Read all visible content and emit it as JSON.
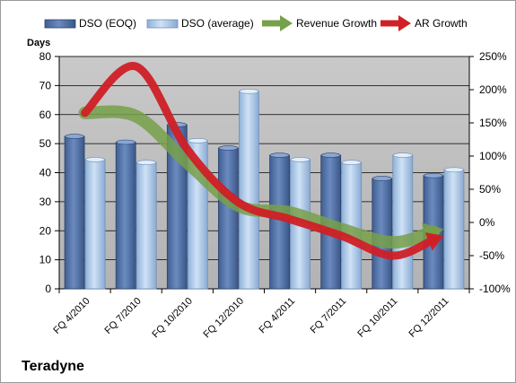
{
  "chart_data": {
    "type": "bar",
    "title": "",
    "company": "Teradyne",
    "left_axis_title": "Days",
    "categories": [
      "FQ 4/2010",
      "FQ 7/2010",
      "FQ 10/2010",
      "FQ 12/2010",
      "FQ 4/2011",
      "FQ 7/2011",
      "FQ 10/2011",
      "FQ 12/2011"
    ],
    "y_left": {
      "min": 0,
      "max": 80,
      "ticks": [
        "0",
        "10",
        "20",
        "30",
        "40",
        "50",
        "60",
        "70",
        "80"
      ]
    },
    "y_right": {
      "min": -100,
      "max": 250,
      "ticks": [
        "-100%",
        "-50%",
        "0%",
        "50%",
        "100%",
        "150%",
        "200%",
        "250%"
      ]
    },
    "grid": true,
    "legend_position": "top",
    "series": [
      {
        "name": "DSO (EOQ)",
        "type": "bar",
        "axis": "left",
        "color": "#4f6fa5",
        "values": [
          52.5,
          50.5,
          56.5,
          48.5,
          46,
          46,
          38,
          39
        ]
      },
      {
        "name": "DSO (average)",
        "type": "bar",
        "axis": "left",
        "color": "#a8c6e8",
        "values": [
          44.5,
          43.5,
          51,
          68,
          44.5,
          43.5,
          46,
          41
        ]
      },
      {
        "name": "Revenue Growth",
        "type": "line",
        "axis": "right",
        "color": "#77a04a",
        "values": [
          165,
          160,
          90,
          25,
          15,
          -10,
          -30,
          -10
        ]
      },
      {
        "name": "AR Growth",
        "type": "line",
        "axis": "right",
        "color": "#d01f26",
        "values": [
          165,
          235,
          110,
          30,
          5,
          -20,
          -50,
          -20
        ]
      }
    ]
  }
}
